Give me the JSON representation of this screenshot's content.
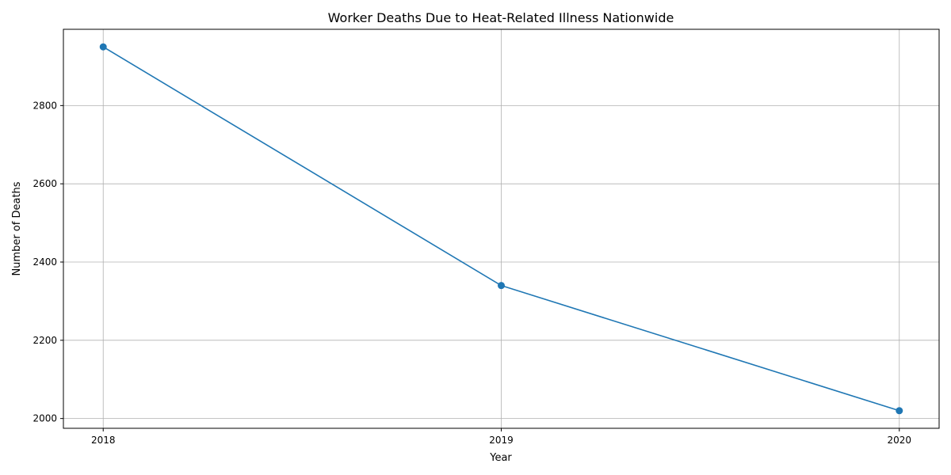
{
  "chart_data": {
    "type": "line",
    "title": "Worker Deaths Due to Heat-Related Illness Nationwide",
    "xlabel": "Year",
    "ylabel": "Number of Deaths",
    "x": [
      "2018",
      "2019",
      "2020"
    ],
    "series": [
      {
        "values": [
          2950,
          2340,
          2020
        ],
        "color": "#1f77b4"
      }
    ],
    "ylim": [
      1975,
      2995
    ],
    "xlim": [
      -0.1,
      2.1
    ],
    "yticks": [
      2000,
      2200,
      2400,
      2600,
      2800
    ],
    "grid": true,
    "marker": "circle"
  }
}
